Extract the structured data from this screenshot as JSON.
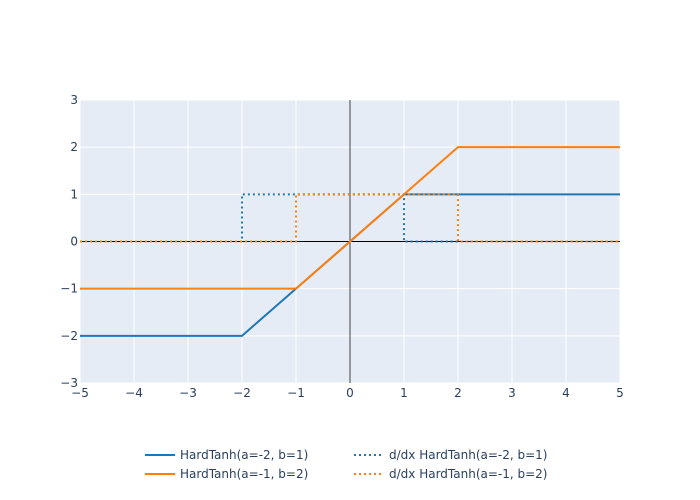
{
  "chart_data": {
    "type": "line",
    "xlim": [
      -5,
      5
    ],
    "ylim": [
      -3,
      3
    ],
    "grid": true,
    "legend_position": "bottom-center",
    "x_ticks": [
      {
        "value": -5,
        "label": "−5"
      },
      {
        "value": -4,
        "label": "−4"
      },
      {
        "value": -3,
        "label": "−3"
      },
      {
        "value": -2,
        "label": "−2"
      },
      {
        "value": -1,
        "label": "−1"
      },
      {
        "value": 0,
        "label": "0"
      },
      {
        "value": 1,
        "label": "1"
      },
      {
        "value": 2,
        "label": "2"
      },
      {
        "value": 3,
        "label": "3"
      },
      {
        "value": 4,
        "label": "4"
      },
      {
        "value": 5,
        "label": "5"
      }
    ],
    "y_ticks": [
      {
        "value": -3,
        "label": "−3"
      },
      {
        "value": -2,
        "label": "−2"
      },
      {
        "value": -1,
        "label": "−1"
      },
      {
        "value": 0,
        "label": "0"
      },
      {
        "value": 1,
        "label": "1"
      },
      {
        "value": 2,
        "label": "2"
      },
      {
        "value": 3,
        "label": "3"
      }
    ],
    "series": [
      {
        "name": "HardTanh(a=-2, b=1)",
        "color": "#1f77b4",
        "dash": "solid",
        "x": [
          -5,
          -2,
          1,
          5
        ],
        "y": [
          -2,
          -2,
          1,
          1
        ]
      },
      {
        "name": "HardTanh(a=-1, b=2)",
        "color": "#ff7f0e",
        "dash": "solid",
        "x": [
          -5,
          -1,
          2,
          5
        ],
        "y": [
          -1,
          -1,
          2,
          2
        ]
      },
      {
        "name": "d/dx HardTanh(a=-2, b=1)",
        "color": "#1f77b4",
        "dash": "dot",
        "x": [
          -5,
          -2,
          -2,
          1,
          1,
          5
        ],
        "y": [
          0,
          0,
          1,
          1,
          0,
          0
        ]
      },
      {
        "name": "d/dx HardTanh(a=-1, b=2)",
        "color": "#ff7f0e",
        "dash": "dot",
        "x": [
          -5,
          -1,
          -1,
          2,
          2,
          5
        ],
        "y": [
          0,
          0,
          1,
          1,
          0,
          0
        ]
      }
    ]
  },
  "colors": {
    "plot_background": "#e5ecf6",
    "grid": "#ffffff",
    "tick_text": "#2a3f5f",
    "zero_line": "#444444"
  }
}
